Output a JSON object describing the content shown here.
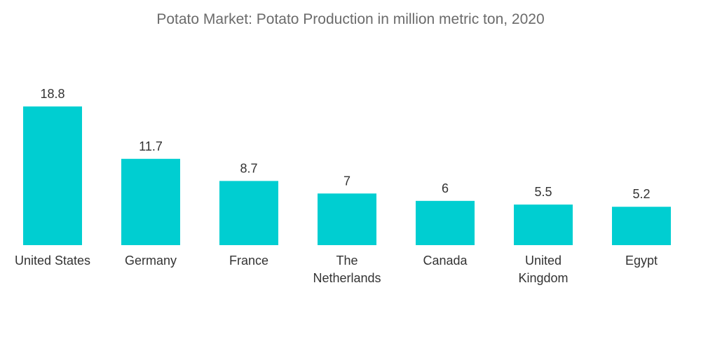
{
  "chart_data": {
    "type": "bar",
    "title": "Potato Market: Potato Production in million metric ton, 2020",
    "categories": [
      "United States",
      "Germany",
      "France",
      "The Netherlands",
      "Canada",
      "United Kingdom",
      "Egypt"
    ],
    "category_lines": [
      [
        "United States"
      ],
      [
        "Germany"
      ],
      [
        "France"
      ],
      [
        "The",
        "Netherlands"
      ],
      [
        "Canada"
      ],
      [
        "United",
        "Kingdom"
      ],
      [
        "Egypt"
      ]
    ],
    "values": [
      18.8,
      11.7,
      8.7,
      7,
      6,
      5.5,
      5.2
    ],
    "value_labels": [
      "18.8",
      "11.7",
      "8.7",
      "7",
      "6",
      "5.5",
      "5.2"
    ],
    "xlabel": "",
    "ylabel": "",
    "ylim": [
      0,
      18.8
    ],
    "grid": false,
    "legend": "none",
    "bar_color": "#00CED1"
  }
}
